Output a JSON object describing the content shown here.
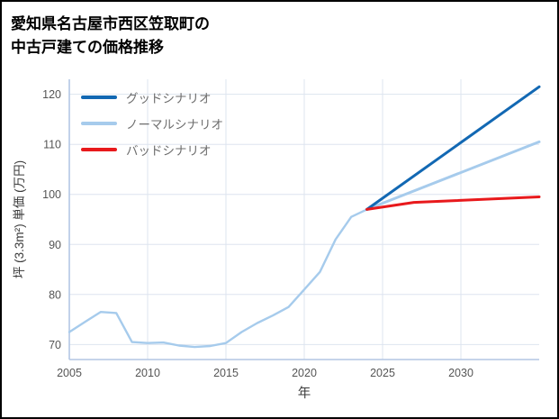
{
  "title": {
    "line1": "愛知県名古屋市西区笠取町の",
    "line2": "中古戸建ての価格推移"
  },
  "legend": {
    "items": [
      {
        "label": "グッドシナリオ",
        "color": "#1268b3"
      },
      {
        "label": "ノーマルシナリオ",
        "color": "#a6cbec"
      },
      {
        "label": "バッドシナリオ",
        "color": "#e8191c"
      }
    ]
  },
  "chart_data": {
    "type": "line",
    "title": "愛知県名古屋市西区笠取町の中古戸建ての価格推移",
    "xlabel": "年",
    "ylabel": "坪 (3.3m²) 単価 (万円)",
    "xlim": [
      2005,
      2035
    ],
    "ylim": [
      67,
      123
    ],
    "xticks": [
      2005,
      2010,
      2015,
      2020,
      2025,
      2030
    ],
    "yticks": [
      70,
      80,
      90,
      100,
      110,
      120
    ],
    "grid": true,
    "legend_position": "upper-left",
    "colors": {
      "background": "#ffffff",
      "border": "#000000",
      "grid": "#dde4ef",
      "spine": "#b3c6e4",
      "tick_label": "#555555",
      "axis_label": "#3a3a3a",
      "legend_text": "#6e6e6e"
    },
    "series": [
      {
        "name": "historical",
        "label": "",
        "color": "#a6cbec",
        "width": 2.4,
        "x": [
          2005,
          2006,
          2007,
          2008,
          2009,
          2010,
          2011,
          2012,
          2013,
          2014,
          2015,
          2016,
          2017,
          2018,
          2019,
          2020,
          2021,
          2022,
          2023,
          2024
        ],
        "y": [
          72.5,
          74.5,
          76.5,
          76.3,
          70.5,
          70.3,
          70.4,
          69.8,
          69.5,
          69.7,
          70.3,
          72.5,
          74.3,
          75.8,
          77.5,
          81.0,
          84.5,
          91.0,
          95.5,
          97.0
        ]
      },
      {
        "name": "normal-scenario",
        "label": "ノーマルシナリオ",
        "color": "#a6cbec",
        "width": 3,
        "x": [
          2024,
          2035
        ],
        "y": [
          97.0,
          110.5
        ]
      },
      {
        "name": "good-scenario",
        "label": "グッドシナリオ",
        "color": "#1268b3",
        "width": 3,
        "x": [
          2024,
          2035
        ],
        "y": [
          97.0,
          121.5
        ]
      },
      {
        "name": "bad-scenario",
        "label": "バッドシナリオ",
        "color": "#e8191c",
        "width": 3,
        "x": [
          2024,
          2027,
          2035
        ],
        "y": [
          97.0,
          98.4,
          99.5
        ]
      }
    ]
  }
}
